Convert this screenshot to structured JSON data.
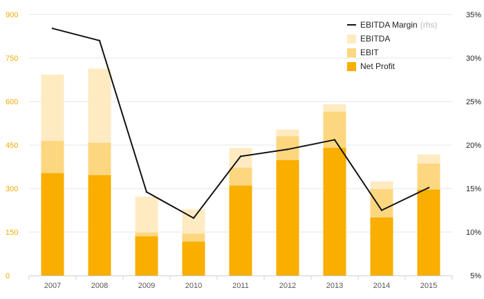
{
  "chart_data": {
    "type": "bar",
    "categories": [
      "2007",
      "2008",
      "2009",
      "2010",
      "2011",
      "2012",
      "2013",
      "2014",
      "2015"
    ],
    "series": [
      {
        "name": "EBITDA",
        "type": "bar",
        "axis": "left",
        "values": [
          693,
          713,
          272,
          228,
          440,
          504,
          591,
          325,
          418
        ],
        "color": "#ffebc2"
      },
      {
        "name": "EBIT",
        "type": "bar",
        "axis": "left",
        "values": [
          464,
          458,
          148,
          145,
          372,
          480,
          565,
          298,
          386
        ],
        "color": "#fdd77f"
      },
      {
        "name": "Net Profit",
        "type": "bar",
        "axis": "left",
        "values": [
          353,
          346,
          135,
          117,
          310,
          398,
          440,
          200,
          296
        ],
        "color": "#f9ae00"
      },
      {
        "name": "EBITDA Margin",
        "type": "line",
        "axis": "right",
        "values": [
          33.4,
          32.0,
          14.6,
          11.6,
          18.7,
          19.5,
          20.6,
          12.5,
          15.1
        ],
        "color": "#111111"
      }
    ],
    "legend": {
      "position": "top-right",
      "items": [
        {
          "label": "EBITDA Margin",
          "suffix": "(rhs)",
          "marker": "line",
          "color": "#111111"
        },
        {
          "label": "EBITDA",
          "suffix": "",
          "marker": "box",
          "color": "#ffebc2"
        },
        {
          "label": "EBIT",
          "suffix": "",
          "marker": "box",
          "color": "#fdd77f"
        },
        {
          "label": "Net Profit",
          "suffix": "",
          "marker": "box",
          "color": "#f9ae00"
        }
      ]
    },
    "y_left": {
      "ylim": [
        0,
        900
      ],
      "ticks": [
        "0",
        "150",
        "300",
        "450",
        "600",
        "750",
        "900"
      ],
      "tick_values": [
        0,
        150,
        300,
        450,
        600,
        750,
        900
      ]
    },
    "y_right": {
      "ylim": [
        5,
        35
      ],
      "ticks": [
        "5%",
        "10%",
        "15%",
        "20%",
        "25%",
        "30%",
        "35%"
      ],
      "tick_values": [
        5,
        10,
        15,
        20,
        25,
        30,
        35
      ]
    },
    "grid": true,
    "title": "",
    "xlabel": "",
    "ylabel": "",
    "colors": {
      "left_ticks": "#f2a900",
      "right_ticks": "#222222",
      "grid": "#e6e6e6"
    }
  }
}
